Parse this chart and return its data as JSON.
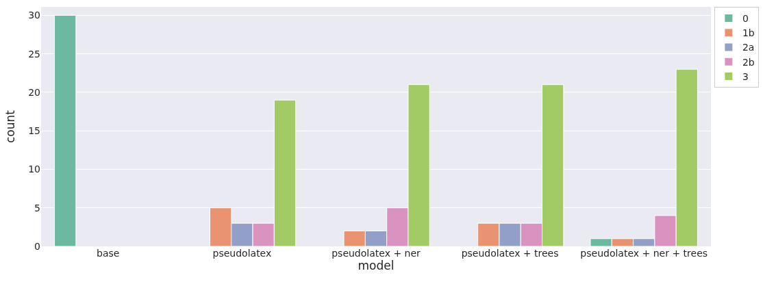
{
  "chart_data": {
    "type": "bar",
    "xlabel": "model",
    "ylabel": "count",
    "categories": [
      "base",
      "pseudolatex",
      "pseudolatex + ner",
      "pseudolatex + trees",
      "pseudolatex + ner + trees"
    ],
    "series": [
      {
        "name": "0",
        "color": "#6bb9a0",
        "values": [
          30,
          null,
          null,
          null,
          1
        ]
      },
      {
        "name": "1b",
        "color": "#e99370",
        "values": [
          null,
          5,
          2,
          3,
          1
        ]
      },
      {
        "name": "2a",
        "color": "#929fc6",
        "values": [
          null,
          3,
          2,
          3,
          1
        ]
      },
      {
        "name": "2b",
        "color": "#da93c0",
        "values": [
          null,
          3,
          5,
          3,
          4
        ]
      },
      {
        "name": "3",
        "color": "#a3cb65",
        "values": [
          null,
          19,
          21,
          21,
          23
        ]
      }
    ],
    "ylim": [
      0,
      31.1
    ],
    "yticks": [
      0,
      5,
      10,
      15,
      20,
      25,
      30
    ],
    "grid": "y",
    "legend": "top right"
  }
}
